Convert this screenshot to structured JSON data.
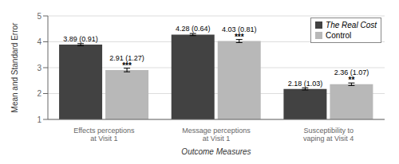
{
  "chart_data": {
    "type": "bar",
    "xlabel": "Outcome Measures",
    "ylabel": "Mean and Standard Error",
    "categories": [
      "Effects perceptions at Visit 1",
      "Message perceptions at Visit 1",
      "Susceptibility to vaping at Visit 4"
    ],
    "series": [
      {
        "name": "The Real Cost",
        "color": "#424242",
        "values": [
          3.89,
          4.28,
          2.18
        ],
        "errors": [
          0.04,
          0.04,
          0.04
        ],
        "value_labels": [
          "3.89 (0.91)",
          "4.28 (0.64)",
          "2.18 (1.03)"
        ]
      },
      {
        "name": "Control",
        "color": "#b8b8b8",
        "values": [
          2.91,
          4.03,
          2.36
        ],
        "errors": [
          0.07,
          0.06,
          0.05
        ],
        "value_labels": [
          "2.91 (1.27)",
          "4.03 (0.81)",
          "2.36 (1.07)"
        ],
        "significance": [
          "***",
          "***",
          "**"
        ]
      }
    ],
    "ylim": [
      1,
      5
    ],
    "yticks": [
      1,
      2,
      3,
      4,
      5
    ],
    "grid": true,
    "legend": "upper right",
    "data_labels": true
  }
}
